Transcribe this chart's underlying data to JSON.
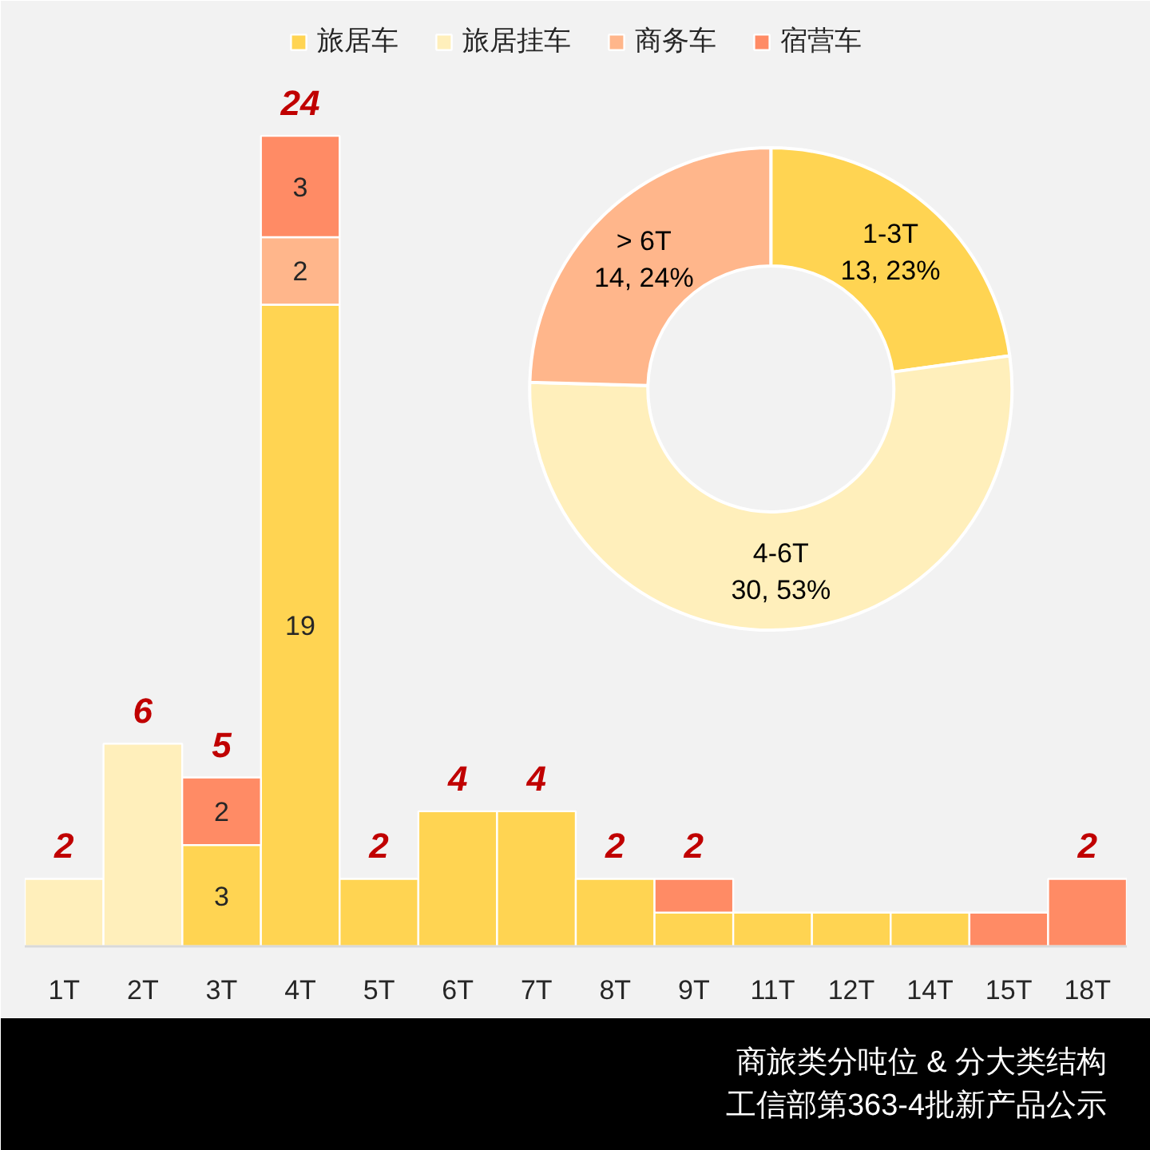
{
  "chart_data": [
    {
      "type": "bar",
      "title": "商旅类分吨位 & 分大类结构",
      "subtitle": "工信部第363-4批新产品公示",
      "categories": [
        "1T",
        "2T",
        "3T",
        "4T",
        "5T",
        "6T",
        "7T",
        "8T",
        "9T",
        "11T",
        "12T",
        "14T",
        "15T",
        "18T"
      ],
      "series": [
        {
          "name": "旅居车",
          "color": "#FFD452",
          "values": [
            null,
            null,
            3,
            19,
            2,
            4,
            4,
            2,
            1,
            1,
            1,
            1,
            null,
            null
          ],
          "value_labels": [
            null,
            null,
            "3",
            "19",
            null,
            null,
            null,
            null,
            null,
            null,
            null,
            null,
            null,
            null
          ]
        },
        {
          "name": "旅居挂车",
          "color": "#FFEFBB",
          "values": [
            2,
            6,
            null,
            null,
            null,
            null,
            null,
            null,
            null,
            null,
            null,
            null,
            null,
            null
          ]
        },
        {
          "name": "商务车",
          "color": "#FFB68B",
          "values": [
            null,
            null,
            null,
            2,
            null,
            null,
            null,
            null,
            null,
            null,
            null,
            null,
            null,
            null
          ],
          "value_labels": [
            null,
            null,
            null,
            "2",
            null,
            null,
            null,
            null,
            null,
            null,
            null,
            null,
            null,
            null
          ]
        },
        {
          "name": "宿营车",
          "color": "#FF8B65",
          "values": [
            null,
            null,
            2,
            3,
            null,
            null,
            null,
            null,
            1,
            null,
            null,
            null,
            1,
            2
          ],
          "value_labels": [
            null,
            null,
            "2",
            "3",
            null,
            null,
            null,
            null,
            null,
            null,
            null,
            null,
            null,
            null
          ]
        }
      ],
      "stacked": true,
      "totals": [
        "2",
        "6",
        "5",
        "24",
        "2",
        "4",
        "4",
        "2",
        "2",
        null,
        null,
        null,
        null,
        "2"
      ],
      "ylim": [
        0,
        28
      ],
      "tick_labels": "x",
      "legend": "top"
    },
    {
      "type": "donut",
      "categories": [
        "1-3T",
        "4-6T",
        "> 6T"
      ],
      "values": [
        13,
        30,
        14
      ],
      "colors": [
        "#FFD452",
        "#FFEFBB",
        "#FFB68B"
      ],
      "value_labels": [
        "13, 23%",
        "30, 53%",
        "14, 24%"
      ]
    }
  ]
}
